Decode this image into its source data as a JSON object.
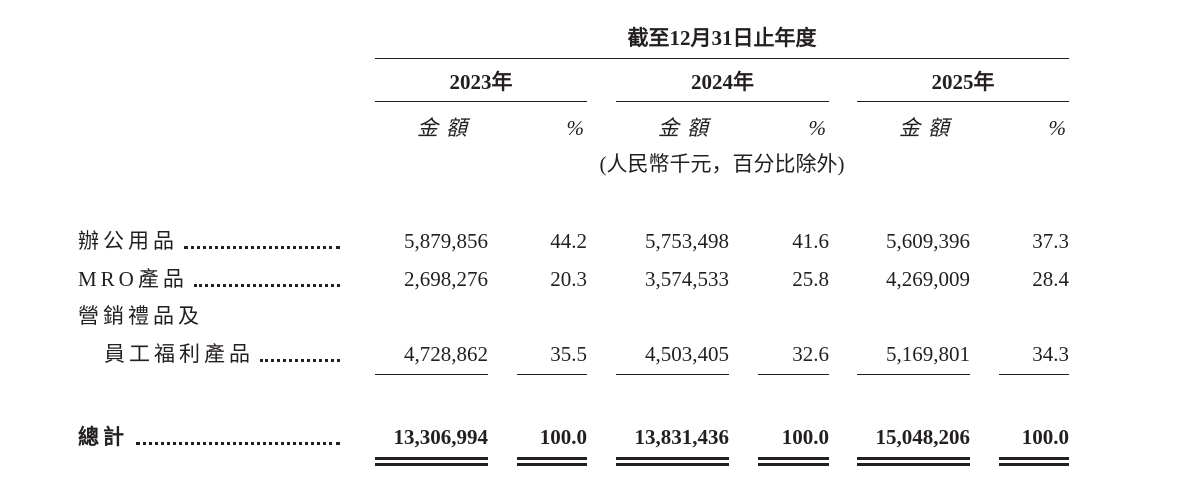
{
  "header": {
    "period": "截至12月31日止年度",
    "years": [
      "2023年",
      "2024年",
      "2025年"
    ],
    "column_labels": [
      "金額",
      "%",
      "金額",
      "%",
      "金額",
      "%"
    ],
    "unit_note": "(人民幣千元，百分比除外)"
  },
  "table": {
    "rows": [
      {
        "label": [
          "辦公用品"
        ],
        "cells": [
          "5,879,856",
          "44.2",
          "5,753,498",
          "41.6",
          "5,609,396",
          "37.3"
        ]
      },
      {
        "label": [
          "MRO產品"
        ],
        "cells": [
          "2,698,276",
          "20.3",
          "3,574,533",
          "25.8",
          "4,269,009",
          "28.4"
        ]
      },
      {
        "label": [
          "營銷禮品及",
          "員工福利產品"
        ],
        "cells": [
          "4,728,862",
          "35.5",
          "4,503,405",
          "32.6",
          "5,169,801",
          "34.3"
        ]
      }
    ],
    "total": {
      "label": "總計",
      "cells": [
        "13,306,994",
        "100.0",
        "13,831,436",
        "100.0",
        "15,048,206",
        "100.0"
      ]
    }
  }
}
